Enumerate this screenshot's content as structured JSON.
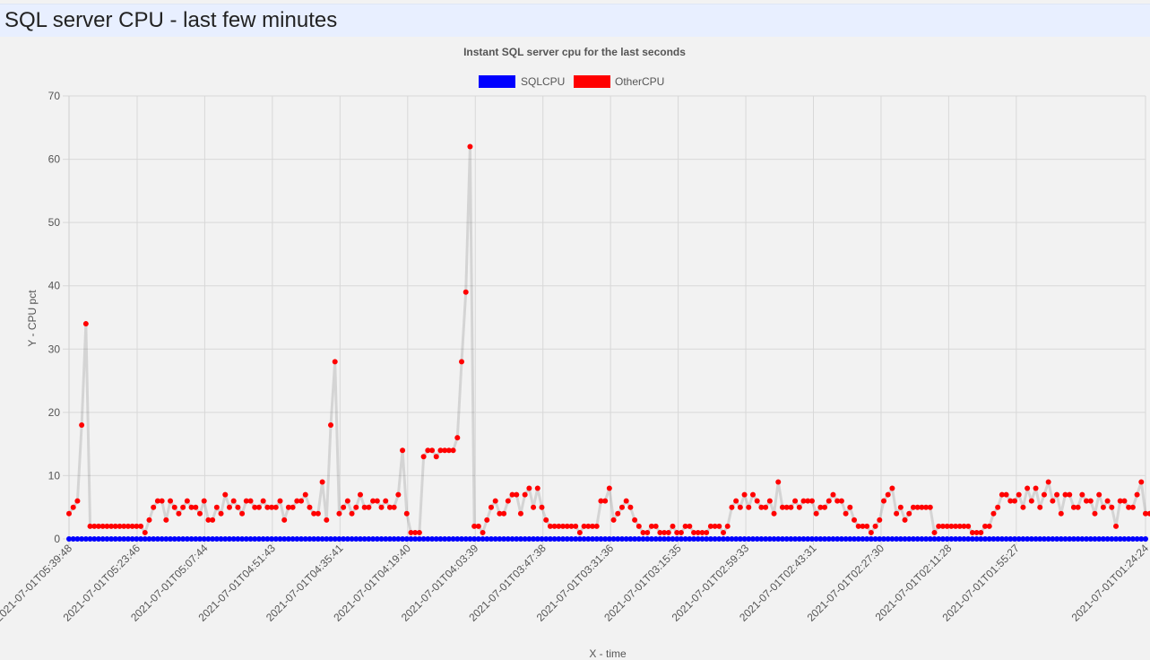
{
  "page": {
    "title": "SQL server CPU - last few minutes"
  },
  "chart_data": {
    "type": "line",
    "title": "Instant SQL server cpu for the last seconds",
    "xlabel": "X - time",
    "ylabel": "Y - CPU pct",
    "ylim": [
      0,
      70
    ],
    "yticks": [
      0,
      10,
      20,
      30,
      40,
      50,
      60,
      70
    ],
    "grid": true,
    "legend_position": "top",
    "x_tick_labels": [
      "2021-07-01T05:39:48",
      "2021-07-01T05:23:46",
      "2021-07-01T05:07:44",
      "2021-07-01T04:51:43",
      "2021-07-01T04:35:41",
      "2021-07-01T04:19:40",
      "2021-07-01T04:03:39",
      "2021-07-01T03:47:38",
      "2021-07-01T03:31:36",
      "2021-07-01T03:15:35",
      "2021-07-01T02:59:33",
      "2021-07-01T02:43:31",
      "2021-07-01T02:27:30",
      "2021-07-01T02:11:28",
      "2021-07-01T01:55:27",
      "2021-07-01T01:24:24"
    ],
    "x_range": [
      "2021-07-01T05:39:48",
      "2021-07-01T01:24:24"
    ],
    "series": [
      {
        "name": "SQLCPU",
        "color": "#0000ff",
        "values": [
          0,
          0,
          0,
          0,
          0,
          0,
          0,
          0,
          0,
          0,
          0,
          0,
          0,
          0,
          0,
          0,
          0,
          0,
          0,
          0,
          0,
          0,
          0,
          0,
          0,
          0,
          0,
          0,
          0,
          0,
          0,
          0,
          0,
          0,
          0,
          0,
          0,
          0,
          0,
          0,
          0,
          0,
          0,
          0,
          0,
          0,
          0,
          0,
          0,
          0,
          0,
          0,
          0,
          0,
          0,
          0,
          0,
          0,
          0,
          0,
          0,
          0,
          0,
          0,
          0,
          0,
          0,
          0,
          0,
          0,
          0,
          0,
          0,
          0,
          0,
          0,
          0,
          0,
          0,
          0,
          0,
          0,
          0,
          0,
          0,
          0,
          0,
          0,
          0,
          0,
          0,
          0,
          0,
          0,
          0,
          0,
          0,
          0,
          0,
          0,
          0,
          0,
          0,
          0,
          0,
          0,
          0,
          0,
          0,
          0,
          0,
          0,
          0,
          0,
          0,
          0,
          0,
          0,
          0,
          0,
          0,
          0,
          0,
          0,
          0,
          0,
          0,
          0,
          0,
          0,
          0,
          0,
          0,
          0,
          0,
          0,
          0,
          0,
          0,
          0,
          0,
          0,
          0,
          0,
          0,
          0,
          0,
          0,
          0,
          0,
          0,
          0,
          0,
          0,
          0,
          0,
          0,
          0,
          0,
          0,
          0,
          0,
          0,
          0,
          0,
          0,
          0,
          0,
          0,
          0,
          0,
          0,
          0,
          0,
          0,
          0,
          0,
          0,
          0,
          0,
          0,
          0,
          0,
          0,
          0,
          0,
          0,
          0,
          0,
          0,
          0,
          0,
          0,
          0,
          0,
          0,
          0,
          0,
          0,
          0,
          0,
          0,
          0,
          0,
          0,
          0,
          0,
          0,
          0,
          0,
          0,
          0,
          0,
          0,
          0,
          0,
          0,
          0,
          0,
          0,
          0,
          0,
          0,
          0,
          0,
          0,
          0,
          0,
          0,
          0,
          0,
          0,
          0,
          0,
          0,
          0,
          0,
          0,
          0,
          0,
          0,
          0,
          0,
          0,
          0,
          0,
          0,
          0,
          0,
          0,
          0,
          0,
          0,
          0,
          0,
          0
        ]
      },
      {
        "name": "OtherCPU",
        "color": "#ff0000",
        "values": [
          4,
          5,
          6,
          18,
          34,
          2,
          2,
          2,
          2,
          2,
          2,
          2,
          2,
          2,
          2,
          2,
          2,
          2,
          1,
          3,
          5,
          6,
          6,
          3,
          6,
          5,
          4,
          5,
          6,
          5,
          5,
          4,
          6,
          3,
          3,
          5,
          4,
          7,
          5,
          6,
          5,
          4,
          6,
          6,
          5,
          5,
          6,
          5,
          5,
          5,
          6,
          3,
          5,
          5,
          6,
          6,
          7,
          5,
          4,
          4,
          9,
          3,
          18,
          28,
          4,
          5,
          6,
          4,
          5,
          7,
          5,
          5,
          6,
          6,
          5,
          6,
          5,
          5,
          7,
          14,
          4,
          1,
          1,
          1,
          13,
          14,
          14,
          13,
          14,
          14,
          14,
          14,
          16,
          28,
          39,
          62,
          2,
          2,
          1,
          3,
          5,
          6,
          4,
          4,
          6,
          7,
          7,
          4,
          7,
          8,
          5,
          8,
          5,
          3,
          2,
          2,
          2,
          2,
          2,
          2,
          2,
          1,
          2,
          2,
          2,
          2,
          6,
          6,
          8,
          3,
          4,
          5,
          6,
          5,
          3,
          2,
          1,
          1,
          2,
          2,
          1,
          1,
          1,
          2,
          1,
          1,
          2,
          2,
          1,
          1,
          1,
          1,
          2,
          2,
          2,
          1,
          2,
          5,
          6,
          5,
          7,
          5,
          7,
          6,
          5,
          5,
          6,
          4,
          9,
          5,
          5,
          5,
          6,
          5,
          6,
          6,
          6,
          4,
          5,
          5,
          6,
          7,
          6,
          6,
          4,
          5,
          3,
          2,
          2,
          2,
          1,
          2,
          3,
          6,
          7,
          8,
          4,
          5,
          3,
          4,
          5,
          5,
          5,
          5,
          5,
          1,
          2,
          2,
          2,
          2,
          2,
          2,
          2,
          2,
          1,
          1,
          1,
          2,
          2,
          4,
          5,
          7,
          7,
          6,
          6,
          7,
          5,
          8,
          6,
          8,
          5,
          7,
          9,
          6,
          7,
          4,
          7,
          7,
          5,
          5,
          7,
          6,
          6,
          4,
          7,
          5,
          6,
          5,
          2,
          6,
          6,
          5,
          5,
          7,
          9,
          4,
          4
        ]
      }
    ]
  }
}
